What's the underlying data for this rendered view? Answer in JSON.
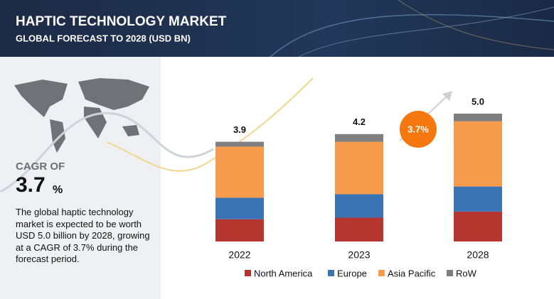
{
  "chart_data": {
    "type": "stacked-bar",
    "title": "HAPTIC TECHNOLOGY MARKET",
    "subtitle": "GLOBAL FORECAST TO 2028 (USD BN)",
    "categories": [
      "2022",
      "2023",
      "2028"
    ],
    "series": [
      {
        "name": "North America",
        "color": "#b5352f",
        "values": [
          0.87,
          0.93,
          1.17
        ]
      },
      {
        "name": "Europe",
        "color": "#3b74b4",
        "values": [
          0.84,
          0.92,
          0.98
        ]
      },
      {
        "name": "Asia Pacific",
        "color": "#f59b4b",
        "values": [
          2.0,
          2.05,
          2.55
        ]
      },
      {
        "name": "RoW",
        "color": "#7f7f7f",
        "values": [
          0.19,
          0.3,
          0.3
        ]
      }
    ],
    "totals": [
      3.9,
      4.2,
      5.0
    ],
    "total_labels": [
      "3.9",
      "4.2",
      "5.0"
    ],
    "cagr_label": "CAGR OF",
    "cagr_value": "3.7",
    "cagr_unit": "%",
    "bubble_label": "3.7%",
    "description": "The global haptic technology market is expected to be worth USD 5.0 billion  by 2028, growing at a CAGR of 3.7% during the forecast period."
  }
}
